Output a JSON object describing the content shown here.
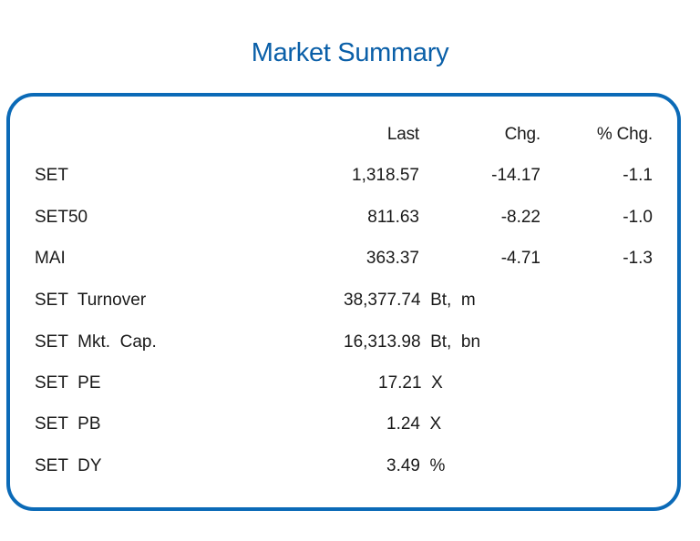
{
  "title": "Market Summary",
  "headers": {
    "last": "Last",
    "chg": "Chg.",
    "pct_chg": "% Chg."
  },
  "indices": [
    {
      "name": "SET",
      "last": "1,318.57",
      "chg": "-14.17",
      "pct_chg": "-1.1"
    },
    {
      "name": "SET50",
      "last": "811.63",
      "chg": "-8.22",
      "pct_chg": "-1.0"
    },
    {
      "name": "MAI",
      "last": "363.37",
      "chg": "-4.71",
      "pct_chg": "-1.3"
    }
  ],
  "stats": [
    {
      "name": "SET  Turnover",
      "value": "38,377.74  Bt,  m"
    },
    {
      "name": "SET  Mkt.  Cap.",
      "value": "16,313.98  Bt,  bn"
    },
    {
      "name": "SET  PE",
      "value": "17.21  X"
    },
    {
      "name": "SET  PB",
      "value": "1.24  X"
    },
    {
      "name": "SET  DY",
      "value": "3.49  %"
    }
  ],
  "colors": {
    "accent": "#0b6ab7",
    "title": "#0a5fa8"
  }
}
